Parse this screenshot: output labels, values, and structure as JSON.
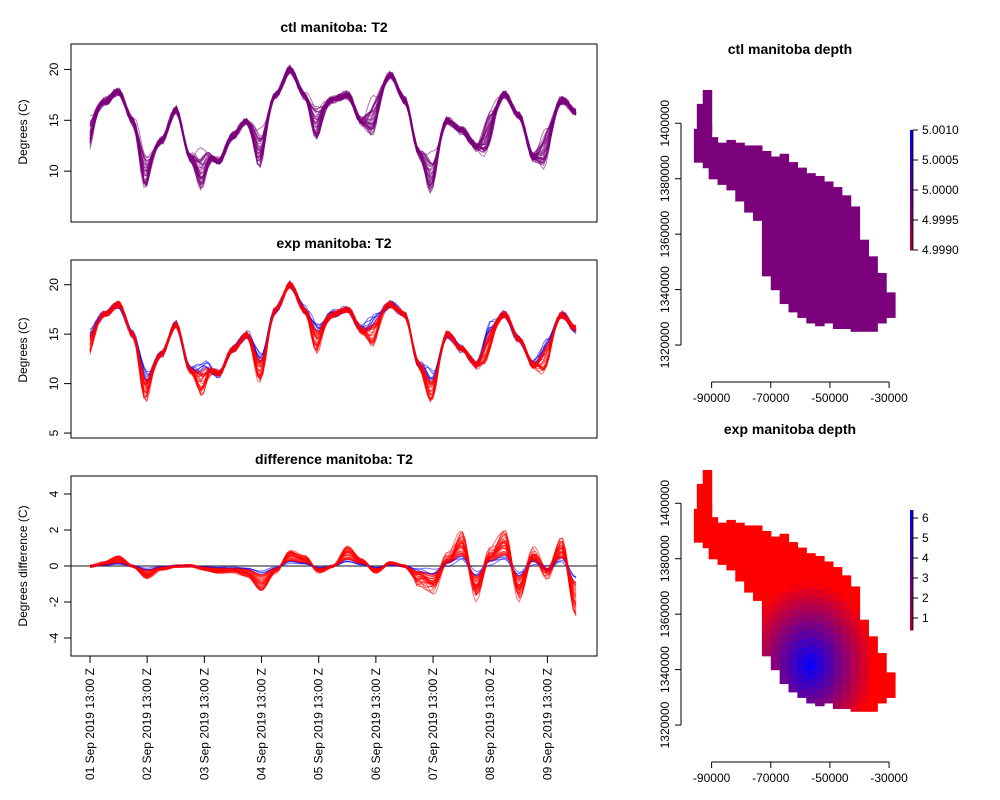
{
  "colors": {
    "ctl": "#7a007a",
    "exp_low": "#ff0000",
    "exp_high": "#0000ff",
    "depth_ctl": "#7b007b",
    "zero_line": "#444444"
  },
  "chart_data": [
    {
      "type": "line",
      "id": "ctl_t2",
      "title": "ctl manitoba: T2",
      "ylabel": "Degrees (C)",
      "ylim": [
        5.0,
        22.5
      ],
      "yticks": [
        10,
        15,
        20
      ],
      "xlim": [
        0,
        8.5
      ],
      "ensemble": "ctl",
      "series": [
        {
          "x": [
            0,
            0.25,
            0.5,
            0.75,
            1.0,
            1.25,
            1.5,
            1.75,
            2.0,
            2.25,
            2.5,
            2.75,
            3.0,
            3.25,
            3.5,
            3.75,
            4.0,
            4.25,
            4.5,
            4.75,
            5.0,
            5.25,
            5.5,
            5.75,
            6.0,
            6.25,
            6.5,
            6.75,
            7.0,
            7.25,
            7.5,
            7.75,
            8.0,
            8.25,
            8.5
          ],
          "y": [
            15.5,
            16.8,
            17.8,
            15.0,
            11.5,
            13.0,
            16.0,
            11.5,
            12.0,
            11.0,
            13.5,
            15.0,
            14.0,
            17.5,
            20.0,
            17.5,
            16.5,
            17.0,
            17.5,
            15.0,
            17.5,
            19.5,
            17.0,
            12.0,
            11.5,
            15.0,
            14.0,
            12.5,
            16.0,
            17.5,
            15.5,
            11.5,
            14.5,
            17.0,
            15.8
          ]
        }
      ]
    },
    {
      "type": "line",
      "id": "exp_t2",
      "title": "exp manitoba: T2",
      "ylabel": "Degrees (C)",
      "ylim": [
        4.5,
        22.5
      ],
      "yticks": [
        5,
        10,
        15,
        20
      ],
      "xlim": [
        0,
        8.5
      ],
      "ensemble": "exp",
      "series": [
        {
          "x": [
            0,
            0.25,
            0.5,
            0.75,
            1.0,
            1.25,
            1.5,
            1.75,
            2.0,
            2.25,
            2.5,
            2.75,
            3.0,
            3.25,
            3.5,
            3.75,
            4.0,
            4.25,
            4.5,
            4.75,
            5.0,
            5.25,
            5.5,
            5.75,
            6.0,
            6.25,
            6.5,
            6.75,
            7.0,
            7.25,
            7.5,
            7.75,
            8.0,
            8.25,
            8.5
          ],
          "y": [
            15.5,
            17.0,
            18.0,
            15.0,
            11.0,
            13.0,
            16.0,
            11.5,
            12.0,
            11.0,
            13.5,
            15.0,
            13.0,
            17.5,
            20.0,
            17.5,
            16.0,
            17.0,
            17.5,
            15.5,
            17.0,
            18.0,
            17.0,
            12.0,
            11.0,
            15.0,
            13.5,
            12.0,
            16.0,
            17.0,
            14.5,
            12.0,
            14.5,
            17.0,
            15.5
          ]
        }
      ]
    },
    {
      "type": "line",
      "id": "diff_t2",
      "title": "difference manitoba: T2",
      "ylabel": "Degrees difference (C)",
      "ylim": [
        -5.0,
        5.0
      ],
      "yticks": [
        -4,
        -2,
        0,
        2,
        4
      ],
      "xlim": [
        0,
        8.5
      ],
      "xticklabels": [
        "01 Sep 2019 13:00 Z",
        "02 Sep 2019 13:00 Z",
        "03 Sep 2019 13:00 Z",
        "04 Sep 2019 13:00 Z",
        "05 Sep 2019 13:00 Z",
        "06 Sep 2019 13:00 Z",
        "07 Sep 2019 13:00 Z",
        "08 Sep 2019 13:00 Z",
        "09 Sep 2019 13:00 Z"
      ],
      "ensemble": "diff",
      "series": [
        {
          "x": [
            0,
            0.25,
            0.5,
            0.75,
            1.0,
            1.25,
            1.5,
            1.75,
            2.0,
            2.25,
            2.5,
            2.75,
            3.0,
            3.25,
            3.5,
            3.75,
            4.0,
            4.25,
            4.5,
            4.75,
            5.0,
            5.25,
            5.5,
            5.75,
            6.0,
            6.25,
            6.5,
            6.75,
            7.0,
            7.25,
            7.5,
            7.75,
            8.0,
            8.25,
            8.5
          ],
          "y": [
            0,
            0.1,
            0.3,
            0.0,
            -0.4,
            -0.1,
            0,
            0,
            -0.1,
            -0.2,
            -0.2,
            -0.3,
            -0.8,
            -0.2,
            0.5,
            0.3,
            -0.2,
            0,
            0.6,
            0.2,
            -0.2,
            0.1,
            0.0,
            -0.5,
            -0.8,
            0.3,
            1.0,
            -1.0,
            0.5,
            1.0,
            -1.0,
            0.5,
            -0.3,
            0.8,
            -1.5
          ]
        }
      ]
    },
    {
      "type": "heatmap",
      "id": "ctl_depth",
      "title": "ctl manitoba depth",
      "xlim": [
        -99000,
        -28000
      ],
      "ylim": [
        1311000,
        1412000
      ],
      "xticks": [
        -90000,
        -70000,
        -50000,
        -30000
      ],
      "yticks": [
        1320000,
        1340000,
        1360000,
        1380000,
        1400000
      ],
      "legend_ticks": [
        "5.0010",
        "5.0005",
        "5.0000",
        "4.9995",
        "4.9990"
      ],
      "uniform_value": 5.0
    },
    {
      "type": "heatmap",
      "id": "exp_depth",
      "title": "exp manitoba depth",
      "xlim": [
        -99000,
        -28000
      ],
      "ylim": [
        1311000,
        1412000
      ],
      "xticks": [
        -90000,
        -70000,
        -50000,
        -30000
      ],
      "yticks": [
        1320000,
        1340000,
        1360000,
        1380000,
        1400000
      ],
      "legend_ticks": [
        "6",
        "5",
        "4",
        "3",
        "2",
        "1"
      ],
      "value_range": [
        0,
        6.5
      ]
    }
  ]
}
